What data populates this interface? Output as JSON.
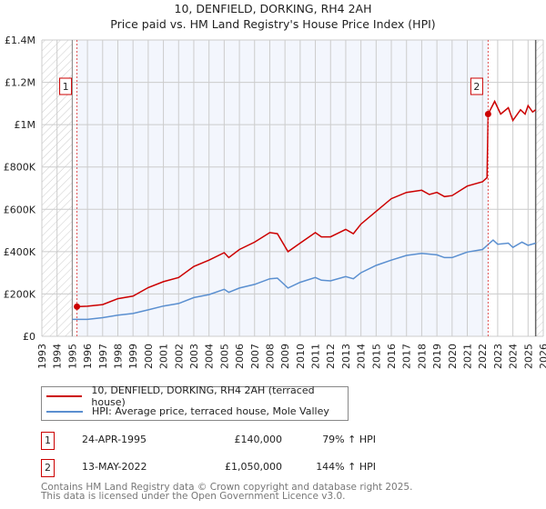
{
  "chart_data": {
    "type": "line",
    "title": "10, DENFIELD, DORKING, RH4 2AH",
    "subtitle": "Price paid vs. HM Land Registry's House Price Index (HPI)",
    "xlim": [
      1993,
      2026
    ],
    "ylim": [
      0,
      1400000
    ],
    "x_ticks": [
      "1993",
      "1994",
      "1995",
      "1996",
      "1997",
      "1998",
      "1999",
      "2000",
      "2001",
      "2002",
      "2003",
      "2004",
      "2005",
      "2006",
      "2007",
      "2008",
      "2009",
      "2010",
      "2011",
      "2012",
      "2013",
      "2014",
      "2015",
      "2016",
      "2017",
      "2018",
      "2019",
      "2020",
      "2021",
      "2022",
      "2023",
      "2024",
      "2025",
      "2026"
    ],
    "y_ticks": [
      {
        "v": 0,
        "label": "£0"
      },
      {
        "v": 200000,
        "label": "£200K"
      },
      {
        "v": 400000,
        "label": "£400K"
      },
      {
        "v": 600000,
        "label": "£600K"
      },
      {
        "v": 800000,
        "label": "£800K"
      },
      {
        "v": 1000000,
        "label": "£1M"
      },
      {
        "v": 1200000,
        "label": "£1.2M"
      },
      {
        "v": 1400000,
        "label": "£1.4M"
      }
    ],
    "grid": true,
    "data_end": 2025.5,
    "series": [
      {
        "name": "10, DENFIELD, DORKING, RH4 2AH (terraced house)",
        "color": "#cc0000",
        "x": [
          1995.3,
          1996,
          1997,
          1998,
          1999,
          2000,
          2001,
          2002,
          2003,
          2004,
          2005,
          2005.3,
          2006,
          2007,
          2008,
          2008.5,
          2009.2,
          2010,
          2011,
          2011.4,
          2012,
          2013,
          2013.5,
          2014,
          2015,
          2016,
          2017,
          2017.5,
          2018,
          2018.5,
          2019,
          2019.5,
          2020,
          2021,
          2022,
          2022.3,
          2022.37,
          2022.8,
          2023.2,
          2023.7,
          2024,
          2024.5,
          2024.8,
          2025,
          2025.3,
          2025.5
        ],
        "y": [
          140000,
          142000,
          150000,
          178000,
          190000,
          230000,
          258000,
          278000,
          330000,
          360000,
          395000,
          372000,
          410000,
          445000,
          490000,
          485000,
          400000,
          440000,
          490000,
          470000,
          470000,
          505000,
          485000,
          530000,
          590000,
          650000,
          680000,
          685000,
          690000,
          670000,
          680000,
          660000,
          665000,
          710000,
          730000,
          750000,
          1050000,
          1110000,
          1050000,
          1080000,
          1020000,
          1070000,
          1050000,
          1090000,
          1060000,
          1070000
        ]
      },
      {
        "name": "HPI: Average price, terraced house, Mole Valley",
        "color": "#5a8fd0",
        "x": [
          1995,
          1996,
          1997,
          1998,
          1999,
          2000,
          2001,
          2002,
          2003,
          2004,
          2005,
          2005.3,
          2006,
          2007,
          2008,
          2008.5,
          2009.2,
          2010,
          2011,
          2011.4,
          2012,
          2013,
          2013.5,
          2014,
          2015,
          2016,
          2017,
          2018,
          2019,
          2019.5,
          2020,
          2021,
          2022,
          2022.7,
          2023,
          2023.7,
          2024,
          2024.6,
          2025,
          2025.5
        ],
        "y": [
          80000,
          80000,
          88000,
          100000,
          108000,
          125000,
          143000,
          155000,
          183000,
          197000,
          222000,
          208000,
          228000,
          245000,
          272000,
          275000,
          228000,
          255000,
          278000,
          265000,
          262000,
          282000,
          272000,
          300000,
          335000,
          360000,
          382000,
          392000,
          385000,
          372000,
          372000,
          398000,
          410000,
          455000,
          435000,
          440000,
          420000,
          445000,
          430000,
          440000
        ]
      }
    ],
    "sales": [
      {
        "n": "1",
        "x": 1995.31,
        "y": 140000
      },
      {
        "n": "2",
        "x": 2022.37,
        "y": 1050000
      }
    ]
  },
  "legend": {
    "red": "10, DENFIELD, DORKING, RH4 2AH (terraced house)",
    "blue": "HPI: Average price, terraced house, Mole Valley"
  },
  "table": [
    {
      "n": "1",
      "date": "24-APR-1995",
      "price": "£140,000",
      "hpi": "79% ↑ HPI"
    },
    {
      "n": "2",
      "date": "13-MAY-2022",
      "price": "£1,050,000",
      "hpi": "144% ↑ HPI"
    }
  ],
  "footer": [
    "Contains HM Land Registry data © Crown copyright and database right 2025.",
    "This data is licensed under the Open Government Licence v3.0."
  ]
}
